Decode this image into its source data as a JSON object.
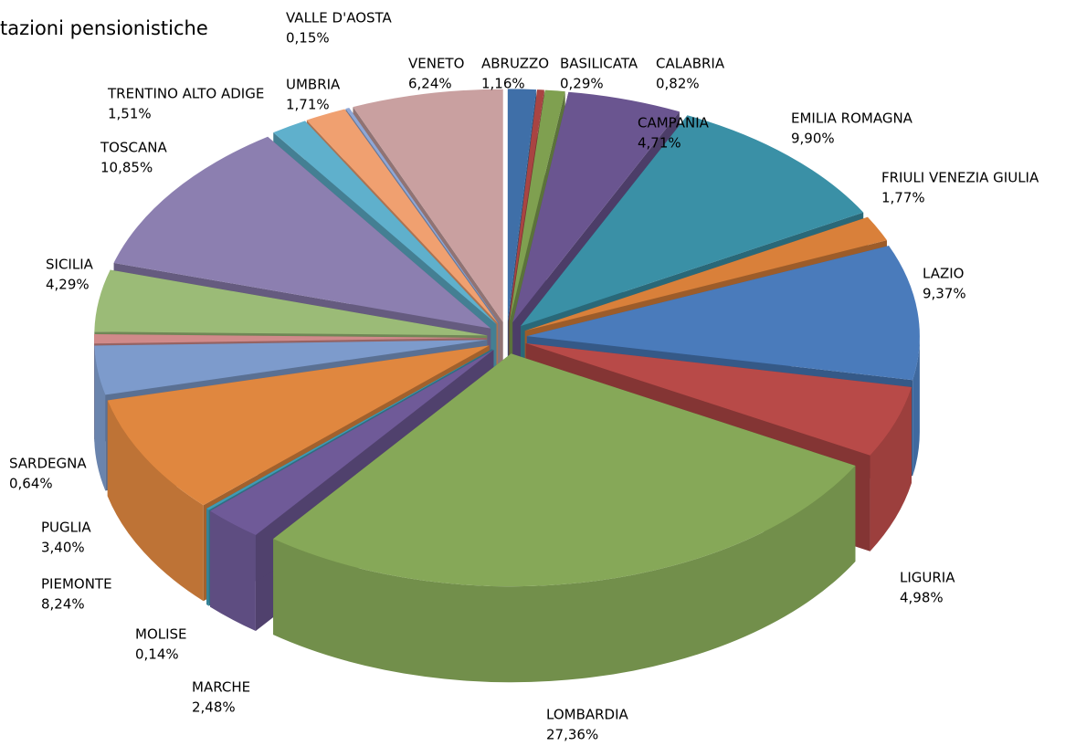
{
  "chart_data": {
    "type": "pie",
    "title": "tazioni pensionistiche",
    "categories": [
      "ABRUZZO",
      "BASILICATA",
      "CALABRIA",
      "CAMPANIA",
      "EMILIA ROMAGNA",
      "FRIULI VENEZIA GIULIA",
      "LAZIO",
      "LIGURIA",
      "LOMBARDIA",
      "MARCHE",
      "MOLISE",
      "PIEMONTE",
      "PUGLIA",
      "SARDEGNA",
      "SICILIA",
      "TOSCANA",
      "TRENTINO ALTO ADIGE",
      "UMBRIA",
      "VALLE D'AOSTA",
      "VENETO"
    ],
    "values": [
      1.16,
      0.29,
      0.82,
      4.71,
      9.9,
      1.77,
      9.37,
      4.98,
      27.36,
      2.48,
      0.14,
      8.24,
      3.4,
      0.64,
      4.29,
      10.85,
      1.51,
      1.71,
      0.15,
      6.24
    ],
    "value_labels": [
      "1,16%",
      "0,29%",
      "0,82%",
      "4,71%",
      "9,90%",
      "1,77%",
      "9,37%",
      "4,98%",
      "27,36%",
      "2,48%",
      "0,14%",
      "8,24%",
      "3,40%",
      "0,64%",
      "4,29%",
      "10,85%",
      "1,51%",
      "1,71%",
      "0,15%",
      "6,24%"
    ],
    "colors": [
      "#3f6fa8",
      "#a94442",
      "#7fa050",
      "#6a5590",
      "#3a90a6",
      "#d9803a",
      "#4a7bbb",
      "#b84a48",
      "#86a858",
      "#6f5a98",
      "#3f9bb4",
      "#e0873f",
      "#7d9bcc",
      "#d08a8a",
      "#9bbb77",
      "#8c7fb0",
      "#5fb0cc",
      "#f0a070",
      "#8fa7d6",
      "#c9a0a0"
    ]
  }
}
